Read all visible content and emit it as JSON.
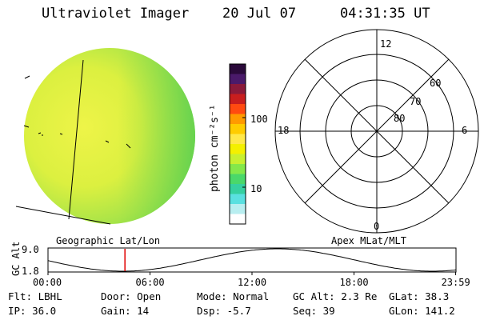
{
  "header": {
    "title": "Ultraviolet Imager",
    "date": "20 Jul 07",
    "time": "04:31:35 UT"
  },
  "colorbar": {
    "unit_label": "photon cm⁻²s⁻¹",
    "ticks": [
      {
        "label": "100",
        "value": 100
      },
      {
        "label": "10",
        "value": 10
      }
    ],
    "colors": [
      "#2a0a3a",
      "#4a1a6a",
      "#8a1a3a",
      "#c81e1e",
      "#ff4a10",
      "#ff9a00",
      "#ffcc00",
      "#ffe84a",
      "#f4f000",
      "#c8f030",
      "#84e84a",
      "#4ad86a",
      "#36d0a0",
      "#5ae0e0",
      "#b8eef0",
      "#ffffff"
    ]
  },
  "earth_image": {
    "label": "Geographic Lat/Lon",
    "colors": {
      "limb_green": "#70d84a",
      "mid_yellow": "#e4f040",
      "edge_speck": "#c8f038"
    }
  },
  "polar_plot": {
    "label": "Apex MLat/MLT",
    "mlt_labels": {
      "top": "12",
      "bottom": "0",
      "left": "18",
      "right": "6"
    },
    "lat_labels": [
      {
        "label": "60",
        "value": 60
      },
      {
        "label": "70",
        "value": 70
      },
      {
        "label": "80",
        "value": 80
      }
    ]
  },
  "altitude_plot": {
    "ylabel": "GC Alt",
    "ytick_top": "9.0",
    "ytick_bottom": "1.8",
    "marker_time_hours": 4.526,
    "x_ticks": [
      {
        "label": "00:00",
        "hours": 0
      },
      {
        "label": "06:00",
        "hours": 6
      },
      {
        "label": "12:00",
        "hours": 12
      },
      {
        "label": "18:00",
        "hours": 18
      },
      {
        "label": "23:59",
        "hours": 23.98
      }
    ],
    "marker_color": "#e00000"
  },
  "info": {
    "flt": "Flt: LBHL",
    "ip": "IP: 36.0",
    "door": "Door: Open",
    "gain": "Gain: 14",
    "mode": "Mode: Normal",
    "dsp": "Dsp:   -5.7",
    "gcalt": "GC Alt: 2.3 Re",
    "seq": "Seq: 39",
    "glat": "GLat:  38.3",
    "glon": "GLon: 141.2"
  }
}
